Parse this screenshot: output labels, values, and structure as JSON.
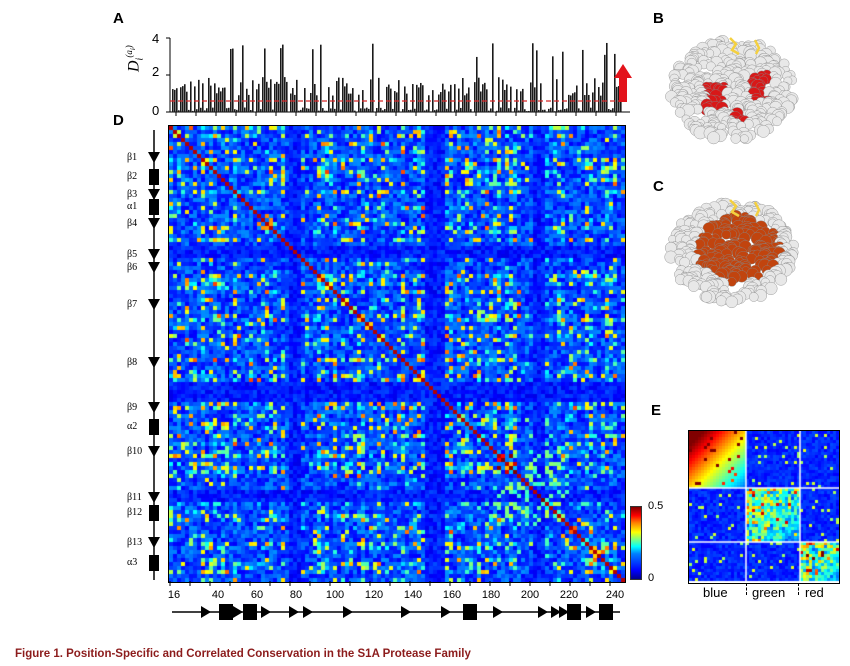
{
  "panel_labels": {
    "A": "A",
    "B": "B",
    "C": "C",
    "D": "D",
    "E": "E"
  },
  "panel_a": {
    "y_ticks": [
      "0",
      "2",
      "4"
    ],
    "y_axis_label": "D",
    "y_axis_sub": "i",
    "y_axis_sup": "(a",
    "y_axis_sup_sub": "i",
    "y_axis_sup_close": ")",
    "threshold_color": "#d62728",
    "arrow_color": "#e3131b"
  },
  "panel_d": {
    "secondary_structure": [
      "β1",
      "β2",
      "β3",
      "α1",
      "β4",
      "β5",
      "β6",
      "β7",
      "β8",
      "β9",
      "α2",
      "β10",
      "β11",
      "β12",
      "β13",
      "α3"
    ],
    "x_ticks": [
      "16",
      "40",
      "60",
      "80",
      "100",
      "120",
      "140",
      "160",
      "180",
      "200",
      "220",
      "240"
    ],
    "colorbar": {
      "max": "0.5",
      "min": "0"
    },
    "colormap": "jet"
  },
  "panel_e": {
    "labels": [
      "blue",
      "green",
      "red"
    ]
  },
  "caption": "Figure 1. Position-Specific and Correlated Conservation in the S1A Protease Family"
}
